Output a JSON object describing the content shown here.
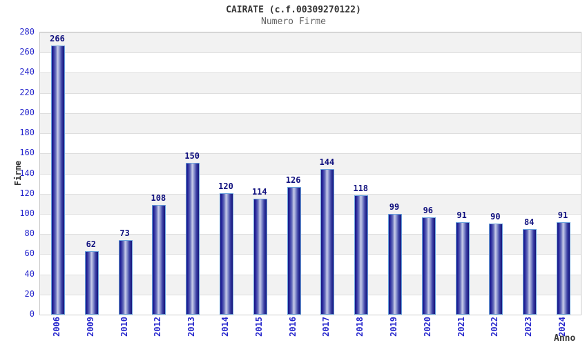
{
  "header": {
    "title": "CAIRATE (c.f.00309270122)",
    "subtitle": "Numero Firme"
  },
  "chart_data": {
    "type": "bar",
    "title": "CAIRATE (c.f.00309270122)",
    "subtitle": "Numero Firme",
    "categories": [
      "2006",
      "2009",
      "2010",
      "2012",
      "2013",
      "2014",
      "2015",
      "2016",
      "2017",
      "2018",
      "2019",
      "2020",
      "2021",
      "2022",
      "2023",
      "2024"
    ],
    "values": [
      266,
      62,
      73,
      108,
      150,
      120,
      114,
      126,
      144,
      118,
      99,
      96,
      91,
      90,
      84,
      91
    ],
    "xlabel": "Anno",
    "ylabel": "Firme",
    "ylim": [
      0,
      280
    ],
    "ytick_step": 20,
    "grid": true,
    "legend": false,
    "colors": {
      "tick_label": "#2424cc",
      "value_label": "#10107e",
      "title": "#333333",
      "subtitle": "#5f5f5f",
      "band_gray": "#f2f2f2",
      "band_white": "#ffffff",
      "gridline": "#dedede",
      "plot_border": "#c9c9c9",
      "bar_edge_dark": "#181880",
      "bar_highlight": "#c9cde9",
      "bar_outline": "#6ba3dd"
    }
  }
}
